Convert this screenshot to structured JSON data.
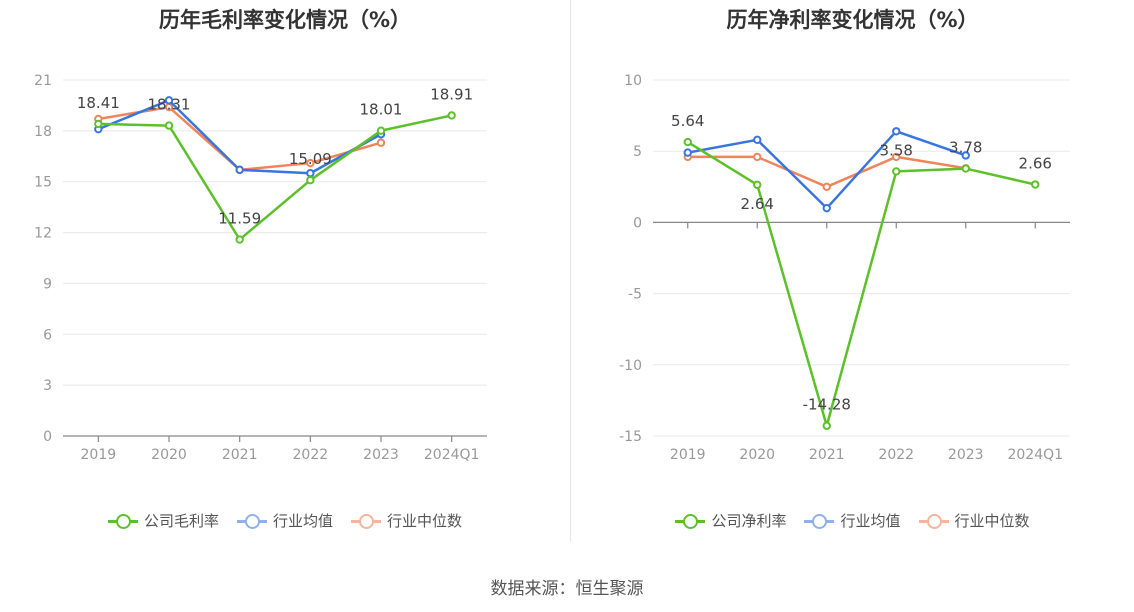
{
  "source": "数据来源：恒生聚源",
  "colors": {
    "company": "#5cc02a",
    "avg": "#3875e0",
    "median": "#f0845b",
    "grid": "#e8e8e8",
    "axis": "#888888",
    "tick": "#999999",
    "label": "#444444"
  },
  "chart_data": [
    {
      "type": "line",
      "title": "历年毛利率变化情况（%）",
      "categories": [
        "2019",
        "2020",
        "2021",
        "2022",
        "2023",
        "2024Q1"
      ],
      "ylim": [
        0,
        21
      ],
      "yticks": [
        0,
        3,
        6,
        9,
        12,
        15,
        18,
        21
      ],
      "series": [
        {
          "name": "公司毛利率",
          "key": "company",
          "values": [
            18.41,
            18.31,
            11.59,
            15.09,
            18.01,
            18.91
          ],
          "labels": [
            "18.41",
            "18.31",
            "11.59",
            "15.09",
            "18.01",
            "18.91"
          ]
        },
        {
          "name": "行业均值",
          "key": "avg",
          "values": [
            18.1,
            19.8,
            15.7,
            15.5,
            17.8,
            null
          ]
        },
        {
          "name": "行业中位数",
          "key": "median",
          "values": [
            18.7,
            19.4,
            15.7,
            16.1,
            17.3,
            null
          ]
        }
      ]
    },
    {
      "type": "line",
      "title": "历年净利率变化情况（%）",
      "categories": [
        "2019",
        "2020",
        "2021",
        "2022",
        "2023",
        "2024Q1"
      ],
      "ylim": [
        -15,
        10
      ],
      "yticks": [
        -15,
        -10,
        -5,
        0,
        5,
        10
      ],
      "series": [
        {
          "name": "公司净利率",
          "key": "company",
          "values": [
            5.64,
            2.64,
            -14.28,
            3.58,
            3.78,
            2.66
          ],
          "labels": [
            "5.64",
            "2.64",
            "-14.28",
            "3.58",
            "3.78",
            "2.66"
          ]
        },
        {
          "name": "行业均值",
          "key": "avg",
          "values": [
            4.9,
            5.8,
            1.0,
            6.4,
            4.7,
            null
          ]
        },
        {
          "name": "行业中位数",
          "key": "median",
          "values": [
            4.6,
            4.6,
            2.5,
            4.6,
            3.8,
            null
          ]
        }
      ]
    }
  ]
}
